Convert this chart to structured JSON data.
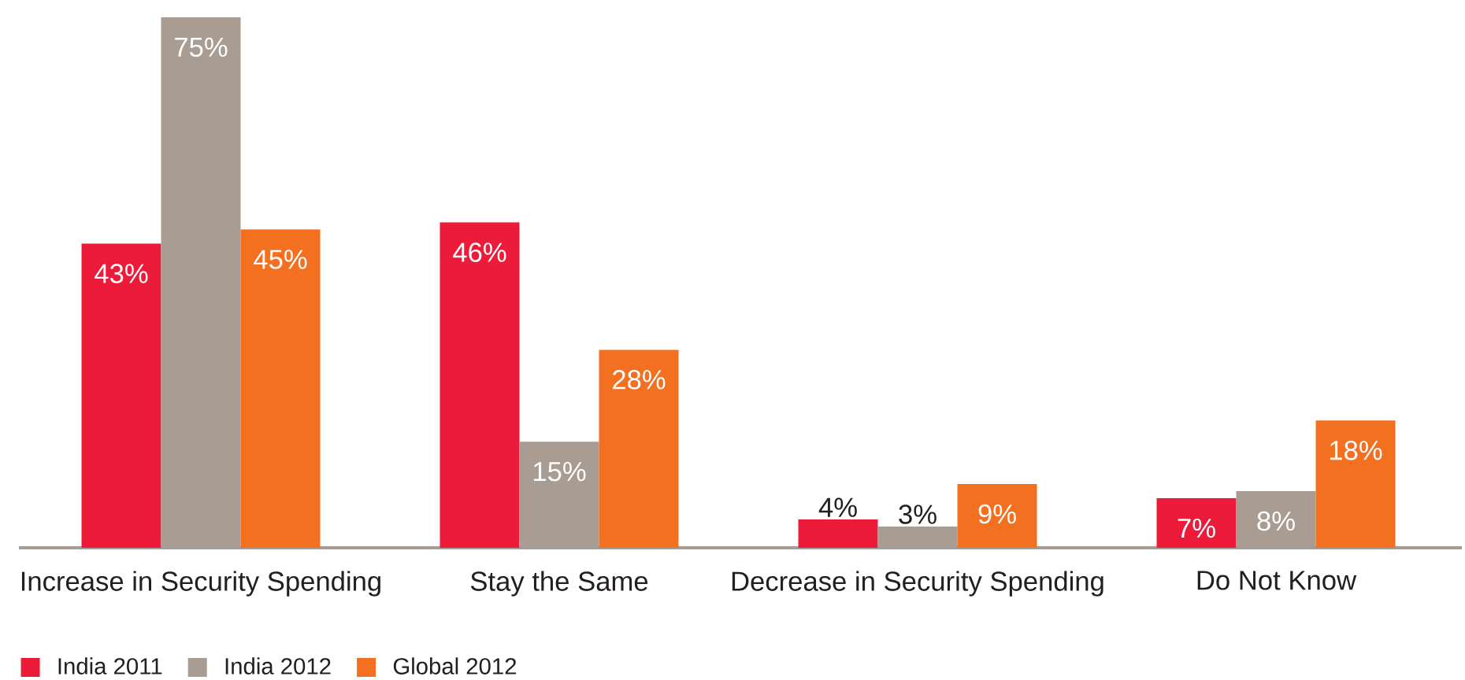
{
  "chart_data": {
    "type": "bar",
    "categories": [
      "Increase in Security Spending",
      "Stay the Same",
      "Decrease in Security Spending",
      "Do Not Know"
    ],
    "series": [
      {
        "name": "India 2011",
        "color": "#ed1b3a",
        "values": [
          43,
          46,
          4,
          7
        ],
        "value_labels": [
          "43%",
          "46%",
          "4%",
          "7%"
        ]
      },
      {
        "name": "India 2012",
        "color": "#a89c93",
        "values": [
          75,
          15,
          3,
          8
        ],
        "value_labels": [
          "75%",
          "15%",
          "3%",
          "8%"
        ]
      },
      {
        "name": "Global 2012",
        "color": "#f37021",
        "values": [
          45,
          28,
          9,
          18
        ],
        "value_labels": [
          "45%",
          "28%",
          "9%",
          "18%"
        ]
      }
    ],
    "legend": "bottom",
    "tick_labels": "x"
  }
}
